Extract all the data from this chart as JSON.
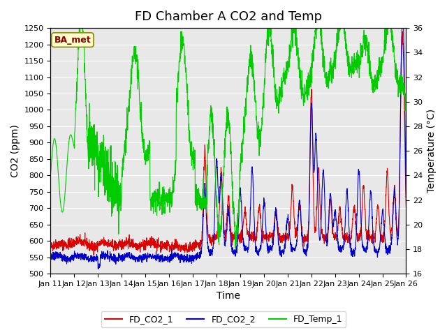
{
  "title": "FD Chamber A CO2 and Temp",
  "xlabel": "Time",
  "ylabel_left": "CO2 (ppm)",
  "ylabel_right": "Temperature (°C)",
  "ylim_left": [
    500,
    1250
  ],
  "ylim_right": [
    16,
    36
  ],
  "yticks_left": [
    500,
    550,
    600,
    650,
    700,
    750,
    800,
    850,
    900,
    950,
    1000,
    1050,
    1100,
    1150,
    1200,
    1250
  ],
  "yticks_right": [
    16,
    18,
    20,
    22,
    24,
    26,
    28,
    30,
    32,
    34,
    36
  ],
  "xtick_labels": [
    "Jan 11",
    "Jan 12",
    "Jan 13",
    "Jan 14",
    "Jan 15",
    "Jan 16",
    "Jan 17",
    "Jan 18",
    "Jan 19",
    "Jan 20",
    "Jan 21",
    "Jan 22",
    "Jan 23",
    "Jan 24",
    "Jan 25",
    "Jan 26"
  ],
  "color_co2_1": "#dd0000",
  "color_co2_2": "#0000cc",
  "color_temp": "#00cc00",
  "legend_labels": [
    "FD_CO2_1",
    "FD_CO2_2",
    "FD_Temp_1"
  ],
  "annotation_text": "BA_met",
  "annotation_box_color": "#ffffcc",
  "annotation_text_color": "#880000",
  "background_color": "#e8e8e8",
  "grid_color": "#ffffff",
  "title_fontsize": 13,
  "axis_label_fontsize": 10,
  "tick_fontsize": 8
}
